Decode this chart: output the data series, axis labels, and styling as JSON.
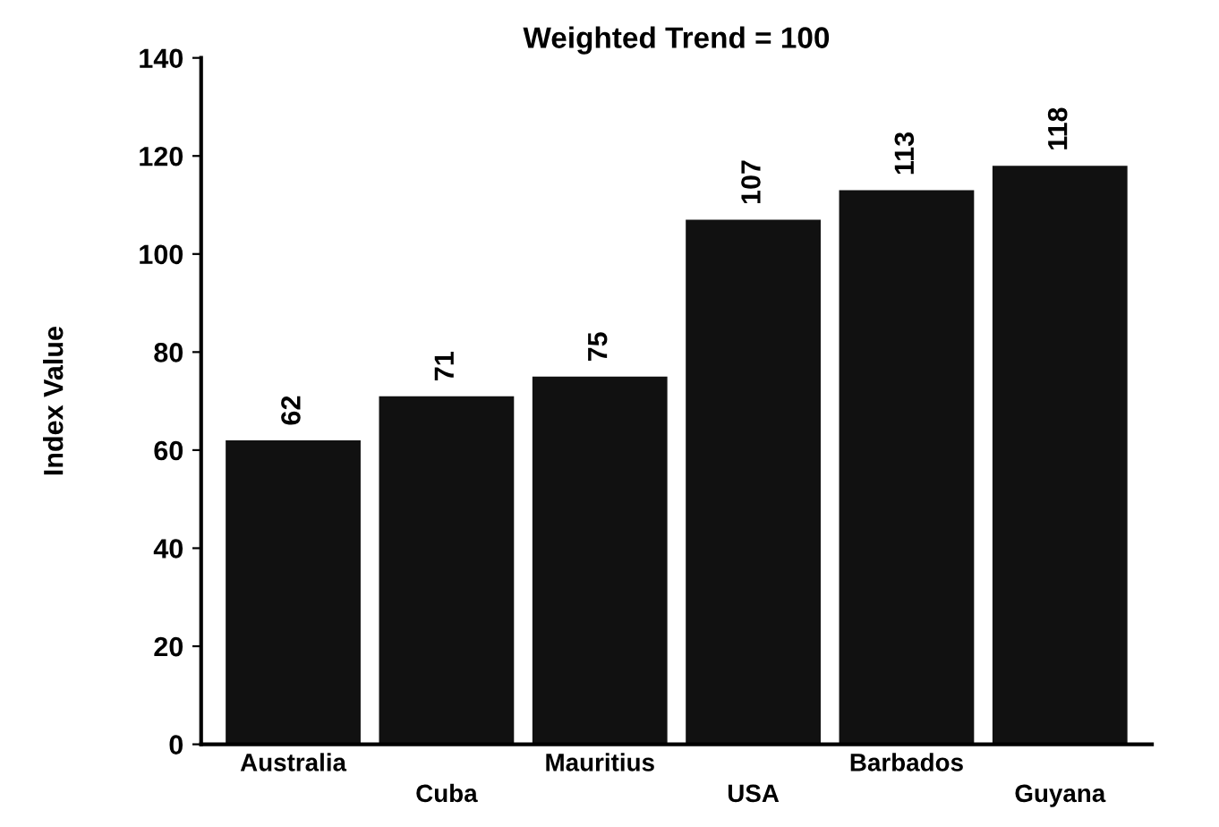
{
  "chart_data": {
    "type": "bar",
    "title": "Weighted Trend = 100",
    "ylabel": "Index Value",
    "categories": [
      "Australia",
      "Cuba",
      "Mauritius",
      "USA",
      "Barbados",
      "Guyana"
    ],
    "values": [
      62,
      71,
      75,
      107,
      113,
      118
    ],
    "color": "#111111",
    "data_labels": true,
    "ylim": [
      0,
      140
    ],
    "yticks": [
      0,
      20,
      40,
      60,
      80,
      100,
      120,
      140
    ],
    "grid": false
  }
}
